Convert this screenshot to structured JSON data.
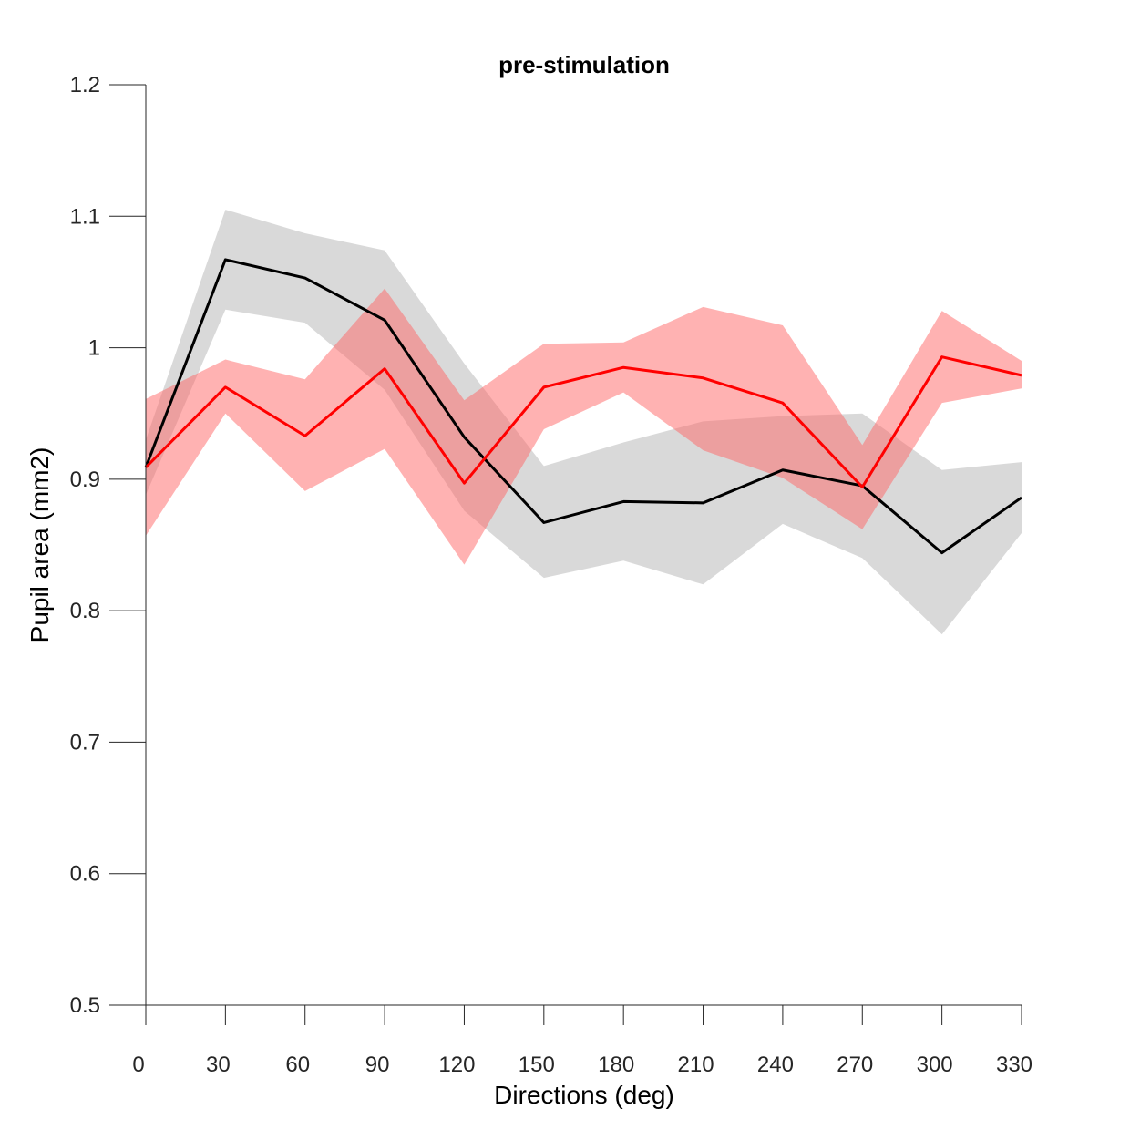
{
  "chart_data": {
    "type": "line",
    "title": "pre-stimulation",
    "xlabel": "Directions (deg)",
    "ylabel": "Pupil area (mm2)",
    "xlim": [
      0,
      330
    ],
    "ylim": [
      0.5,
      1.2
    ],
    "xticks": [
      0,
      30,
      60,
      90,
      120,
      150,
      180,
      210,
      240,
      270,
      300,
      330
    ],
    "yticks": [
      0.5,
      0.6,
      0.7,
      0.8,
      0.9,
      1,
      1.1,
      1.2
    ],
    "ytick_labels": [
      "0.5",
      "0.6",
      "0.7",
      "0.8",
      "0.9",
      "1",
      "1.1",
      "1.2"
    ],
    "grid": false,
    "x": [
      0,
      30,
      60,
      90,
      120,
      150,
      180,
      210,
      240,
      270,
      300,
      330
    ],
    "series": [
      {
        "color": "#000000",
        "band_color": "#b3b3b3",
        "values": [
          0.909,
          1.067,
          1.053,
          1.021,
          0.932,
          0.867,
          0.883,
          0.882,
          0.907,
          0.895,
          0.844,
          0.886
        ],
        "upper": [
          0.93,
          1.105,
          1.087,
          1.074,
          0.988,
          0.91,
          0.928,
          0.944,
          0.948,
          0.95,
          0.907,
          0.913
        ],
        "lower": [
          0.888,
          1.029,
          1.019,
          0.968,
          0.876,
          0.825,
          0.838,
          0.82,
          0.866,
          0.84,
          0.782,
          0.859
        ]
      },
      {
        "color": "#ff0000",
        "band_color": "#ff6666",
        "values": [
          0.909,
          0.97,
          0.933,
          0.984,
          0.897,
          0.97,
          0.985,
          0.977,
          0.958,
          0.894,
          0.993,
          0.979
        ],
        "upper": [
          0.961,
          0.991,
          0.976,
          1.045,
          0.96,
          1.003,
          1.004,
          1.031,
          1.017,
          0.926,
          1.028,
          0.99
        ],
        "lower": [
          0.857,
          0.95,
          0.891,
          0.923,
          0.835,
          0.938,
          0.966,
          0.922,
          0.901,
          0.862,
          0.958,
          0.969
        ]
      }
    ]
  }
}
